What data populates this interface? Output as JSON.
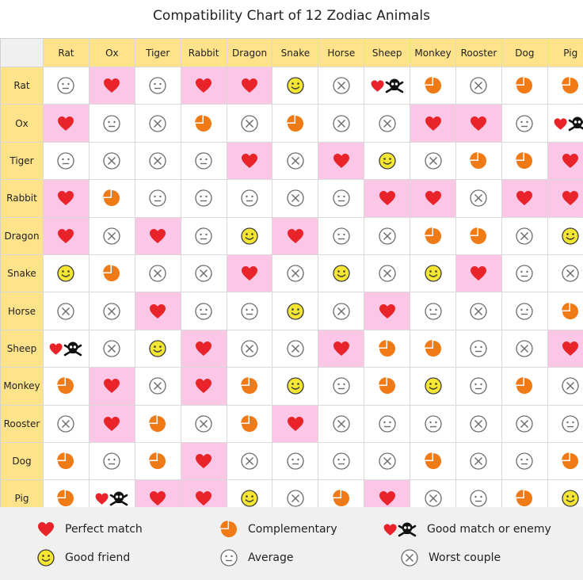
{
  "chart_data": {
    "type": "table",
    "title": "Compatibility Chart of 12 Zodiac Animals",
    "columns": [
      "Rat",
      "Ox",
      "Tiger",
      "Rabbit",
      "Dragon",
      "Snake",
      "Horse",
      "Sheep",
      "Monkey",
      "Rooster",
      "Dog",
      "Pig"
    ],
    "rows": [
      "Rat",
      "Ox",
      "Tiger",
      "Rabbit",
      "Dragon",
      "Snake",
      "Horse",
      "Sheep",
      "Monkey",
      "Rooster",
      "Dog",
      "Pig"
    ],
    "legend": [
      {
        "key": "perfect",
        "label": "Perfect match"
      },
      {
        "key": "comp",
        "label": "Complementary"
      },
      {
        "key": "enemy",
        "label": "Good match or enemy"
      },
      {
        "key": "friend",
        "label": "Good friend"
      },
      {
        "key": "average",
        "label": "Average"
      },
      {
        "key": "worst",
        "label": "Worst couple"
      }
    ],
    "cells": [
      [
        "average",
        "perfect",
        "average",
        "perfect",
        "perfect",
        "friend",
        "worst",
        "enemy",
        "comp",
        "worst",
        "comp",
        "comp"
      ],
      [
        "perfect",
        "average",
        "worst",
        "comp",
        "worst",
        "comp",
        "worst",
        "worst",
        "perfect",
        "perfect",
        "average",
        "enemy"
      ],
      [
        "average",
        "worst",
        "worst",
        "average",
        "perfect",
        "worst",
        "perfect",
        "friend",
        "worst",
        "comp",
        "comp",
        "perfect"
      ],
      [
        "perfect",
        "comp",
        "average",
        "average",
        "average",
        "worst",
        "average",
        "perfect",
        "perfect",
        "worst",
        "perfect",
        "perfect"
      ],
      [
        "perfect",
        "worst",
        "perfect",
        "average",
        "friend",
        "perfect",
        "average",
        "worst",
        "comp",
        "comp",
        "worst",
        "friend"
      ],
      [
        "friend",
        "comp",
        "worst",
        "worst",
        "perfect",
        "worst",
        "friend",
        "worst",
        "friend",
        "perfect",
        "average",
        "worst"
      ],
      [
        "worst",
        "worst",
        "perfect",
        "average",
        "average",
        "friend",
        "worst",
        "perfect",
        "average",
        "worst",
        "average",
        "comp"
      ],
      [
        "enemy",
        "worst",
        "friend",
        "perfect",
        "worst",
        "worst",
        "perfect",
        "comp",
        "comp",
        "average",
        "worst",
        "perfect"
      ],
      [
        "comp",
        "perfect",
        "worst",
        "perfect",
        "comp",
        "friend",
        "average",
        "comp",
        "friend",
        "average",
        "comp",
        "worst"
      ],
      [
        "worst",
        "perfect",
        "comp",
        "worst",
        "comp",
        "perfect",
        "worst",
        "average",
        "average",
        "worst",
        "worst",
        "average"
      ],
      [
        "comp",
        "average",
        "comp",
        "perfect",
        "worst",
        "average",
        "average",
        "worst",
        "comp",
        "worst",
        "average",
        "comp"
      ],
      [
        "comp",
        "enemy",
        "perfect",
        "perfect",
        "friend",
        "worst",
        "comp",
        "perfect",
        "worst",
        "average",
        "comp",
        "friend"
      ]
    ],
    "pink": [
      [
        0,
        1,
        0,
        1,
        1,
        0,
        0,
        0,
        0,
        0,
        0,
        0
      ],
      [
        1,
        0,
        0,
        0,
        0,
        0,
        0,
        0,
        1,
        1,
        0,
        0
      ],
      [
        0,
        0,
        0,
        0,
        1,
        0,
        1,
        0,
        0,
        0,
        0,
        1
      ],
      [
        1,
        0,
        0,
        0,
        0,
        0,
        0,
        1,
        1,
        0,
        1,
        1
      ],
      [
        1,
        0,
        1,
        0,
        0,
        1,
        0,
        0,
        0,
        0,
        0,
        0
      ],
      [
        0,
        0,
        0,
        0,
        1,
        0,
        0,
        0,
        0,
        1,
        0,
        0
      ],
      [
        0,
        0,
        1,
        0,
        0,
        0,
        0,
        1,
        0,
        0,
        0,
        0
      ],
      [
        0,
        0,
        0,
        1,
        0,
        0,
        1,
        0,
        0,
        0,
        0,
        1
      ],
      [
        0,
        1,
        0,
        1,
        0,
        0,
        0,
        0,
        0,
        0,
        0,
        0
      ],
      [
        0,
        1,
        0,
        0,
        0,
        1,
        0,
        0,
        0,
        0,
        0,
        0
      ],
      [
        0,
        0,
        0,
        1,
        0,
        0,
        0,
        0,
        0,
        0,
        0,
        0
      ],
      [
        0,
        0,
        1,
        1,
        0,
        0,
        0,
        1,
        0,
        0,
        0,
        0
      ]
    ]
  },
  "colors": {
    "header_bg": "#ffe38a",
    "pink_bg": "#fcc6e6",
    "heart": "#e8232a",
    "complementary": "#f07a16",
    "friend_face": "#f5e634",
    "neutral_stroke": "#6b6b6b"
  }
}
